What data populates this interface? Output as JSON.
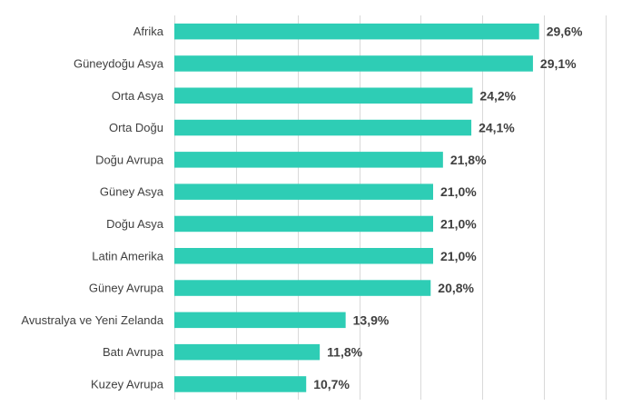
{
  "chart_data": {
    "type": "bar",
    "orientation": "horizontal",
    "categories": [
      "Afrika",
      "Güneydoğu Asya",
      "Orta Asya",
      "Orta Doğu",
      "Doğu Avrupa",
      "Güney Asya",
      "Doğu Asya",
      "Latin Amerika",
      "Güney Avrupa",
      "Avustralya ve Yeni Zelanda",
      "Batı Avrupa",
      "Kuzey Avrupa"
    ],
    "values": [
      29.6,
      29.1,
      24.2,
      24.1,
      21.8,
      21.0,
      21.0,
      21.0,
      20.8,
      13.9,
      11.8,
      10.7
    ],
    "value_labels": [
      "29,6%",
      "29,1%",
      "24,2%",
      "24,1%",
      "21,8%",
      "21,0%",
      "21,0%",
      "21,0%",
      "20,8%",
      "13,9%",
      "11,8%",
      "10,7%"
    ],
    "xlim": [
      0,
      35
    ],
    "grid": true,
    "title": "",
    "xlabel": "",
    "ylabel": "",
    "bar_color": "#2ecdb5",
    "grid_color": "#d9d9d9",
    "text_color": "#404040"
  }
}
